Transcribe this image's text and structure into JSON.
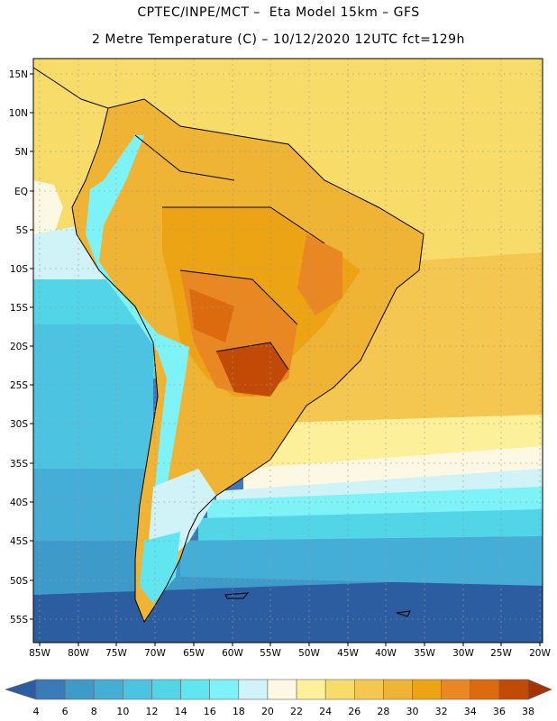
{
  "header": {
    "line1": "CPTEC/INPE/MCT –  Eta Model 15km – GFS",
    "line2": "2 Metre Temperature (C) – 10/12/2020 12UTC fct=129h"
  },
  "map": {
    "lat_labels": [
      "15N",
      "10N",
      "5N",
      "EQ",
      "5S",
      "10S",
      "15S",
      "20S",
      "25S",
      "30S",
      "35S",
      "40S",
      "45S",
      "50S",
      "55S"
    ],
    "lon_labels": [
      "85W",
      "80W",
      "75W",
      "70W",
      "65W",
      "60W",
      "55W",
      "50W",
      "45W",
      "40W",
      "35W",
      "30W",
      "25W",
      "20W"
    ]
  },
  "legend": {
    "values": [
      "4",
      "6",
      "8",
      "10",
      "12",
      "14",
      "16",
      "18",
      "20",
      "22",
      "24",
      "26",
      "28",
      "30",
      "32",
      "34",
      "36",
      "38"
    ],
    "colors": [
      "#2c5da1",
      "#3a7ab8",
      "#3e9ac9",
      "#44aed6",
      "#4cc3e1",
      "#53d5e8",
      "#60e6f0",
      "#7ef3f7",
      "#cff3f7",
      "#fdf8e4",
      "#fcf09a",
      "#f8dc6a",
      "#f4c850",
      "#efb434",
      "#eca415",
      "#e98822",
      "#dc6a0e",
      "#c24a07",
      "#a63306"
    ]
  }
}
